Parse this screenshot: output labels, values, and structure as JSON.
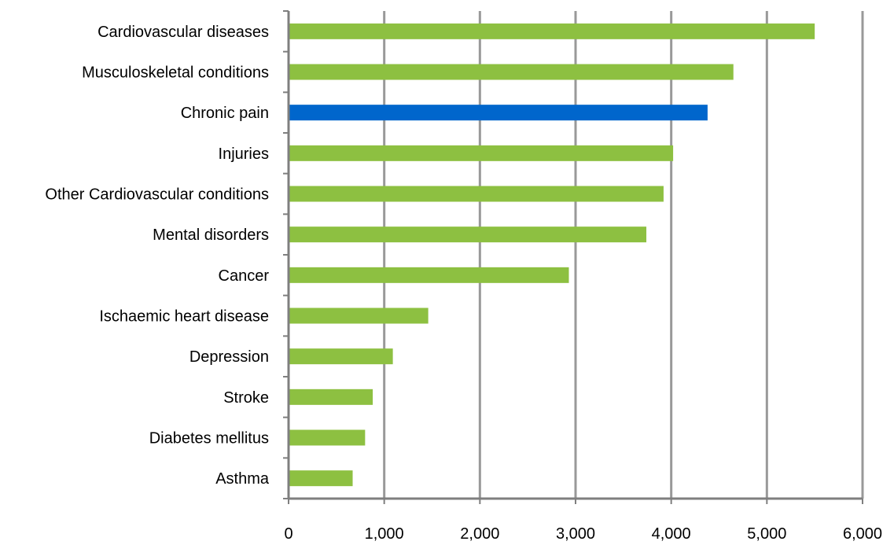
{
  "chart_data": {
    "type": "bar",
    "orientation": "horizontal",
    "categories": [
      "Cardiovascular diseases",
      "Musculoskeletal conditions",
      "Chronic pain",
      "Injuries",
      "Other Cardiovascular conditions",
      "Mental disorders",
      "Cancer",
      "Ischaemic heart disease",
      "Depression",
      "Stroke",
      "Diabetes mellitus",
      "Asthma"
    ],
    "values": [
      5500,
      4650,
      4380,
      4020,
      3920,
      3740,
      2930,
      1460,
      1090,
      880,
      800,
      670
    ],
    "highlight": "Chronic pain",
    "colors": {
      "default": "#8DC041",
      "highlight": "#0066CC",
      "grid": "#999999",
      "axis": "#7F7F7F"
    },
    "xlim": [
      0,
      6000
    ],
    "x_ticks": [
      0,
      1000,
      2000,
      3000,
      4000,
      5000,
      6000
    ],
    "x_tick_labels": [
      "0",
      "1,000",
      "2,000",
      "3,000",
      "4,000",
      "5,000",
      "6,000"
    ],
    "grid": true,
    "legend": false
  }
}
